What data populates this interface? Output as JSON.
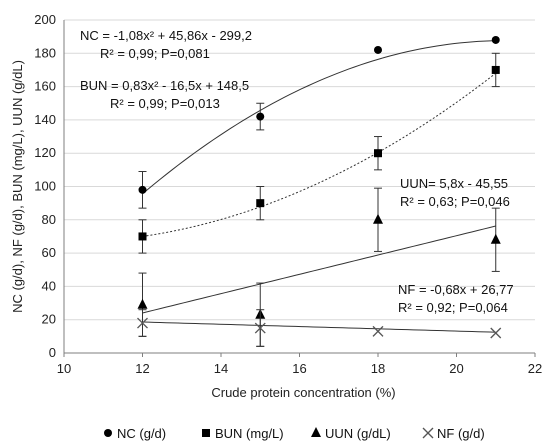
{
  "chart_data": {
    "type": "scatter",
    "title": "",
    "xlabel": "Crude protein concentration (%)",
    "ylabel": "NC (g/d), NF (g/d), BUN (mg/L), UUN (g/dL)",
    "xlim": [
      10,
      22
    ],
    "ylim": [
      0,
      200
    ],
    "xticks": [
      10,
      12,
      14,
      16,
      18,
      20,
      22
    ],
    "yticks": [
      0,
      20,
      40,
      60,
      80,
      100,
      120,
      140,
      160,
      180,
      200
    ],
    "grid": "horizontal",
    "legend_position": "bottom",
    "series": [
      {
        "name": "NC (g/d)",
        "marker": "circle",
        "line_style": "solid",
        "x": [
          12,
          15,
          18,
          21
        ],
        "y": [
          98,
          142,
          182,
          188
        ],
        "err": [
          11,
          8,
          0,
          0
        ],
        "fit": {
          "kind": "poly2",
          "coef": [
            -1.08,
            45.86,
            -299.2
          ]
        }
      },
      {
        "name": "BUN (mg/L)",
        "marker": "square",
        "line_style": "dotted",
        "x": [
          12,
          15,
          18,
          21
        ],
        "y": [
          70,
          90,
          120,
          170
        ],
        "err": [
          10,
          10,
          10,
          10
        ],
        "fit": {
          "kind": "poly2",
          "coef": [
            0.83,
            -16.5,
            148.5
          ]
        }
      },
      {
        "name": "UUN (g/dL)",
        "marker": "triangle",
        "line_style": "solid",
        "x": [
          12,
          15,
          18,
          21
        ],
        "y": [
          29,
          23,
          80,
          68
        ],
        "err": [
          19,
          19,
          19,
          19
        ],
        "fit": {
          "kind": "linear",
          "coef": [
            5.8,
            -45.55
          ]
        }
      },
      {
        "name": "NF (g/d)",
        "marker": "cross",
        "line_style": "solid",
        "x": [
          12,
          15,
          18,
          21
        ],
        "y": [
          18,
          15,
          13,
          12
        ],
        "err": [
          8,
          11,
          0,
          0
        ],
        "fit": {
          "kind": "linear",
          "coef": [
            -0.68,
            26.77
          ]
        }
      }
    ],
    "annotations": [
      {
        "lines": [
          "NC = -1,08x² + 45,86x - 299,2",
          "R² = 0,99;   P=0,081"
        ]
      },
      {
        "lines": [
          "BUN = 0,83x² - 16,5x + 148,5",
          "R² = 0,99; P=0,013"
        ]
      },
      {
        "lines": [
          "UUN= 5,8x - 45,55",
          "R² = 0,63; P=0,046"
        ]
      },
      {
        "lines": [
          "NF = -0,68x + 26,77",
          "R² = 0,92; P=0,064"
        ]
      }
    ]
  }
}
